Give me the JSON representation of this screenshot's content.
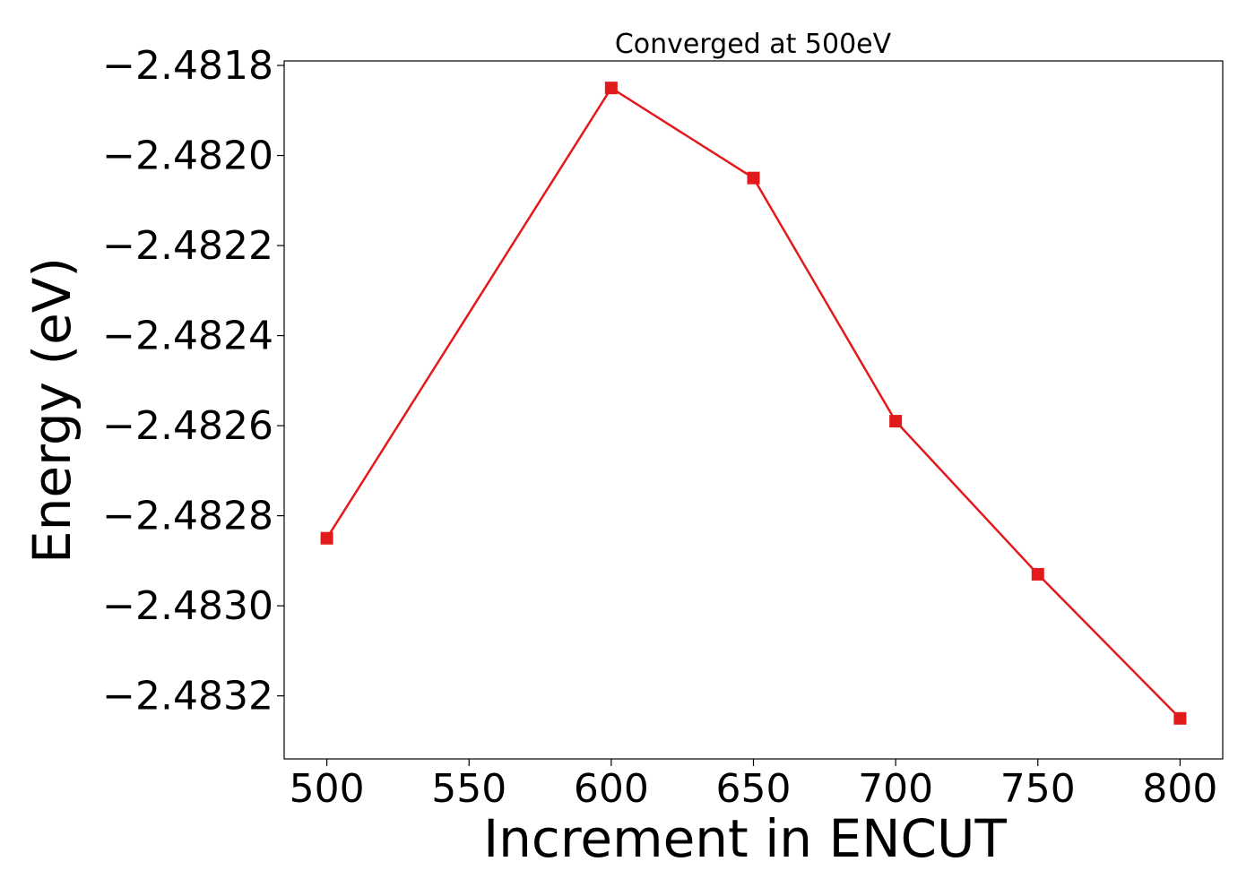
{
  "chart_data": {
    "type": "line",
    "title": "Converged at 500eV",
    "xlabel": "Increment in ENCUT",
    "ylabel": "Energy (eV)",
    "x": [
      500,
      600,
      650,
      700,
      750,
      800
    ],
    "series": [
      {
        "values": [
          -2.48285,
          -2.48185,
          -2.48205,
          -2.48259,
          -2.48293,
          -2.48325
        ],
        "color": "#e31a1c",
        "marker": "square"
      }
    ],
    "xticks": [
      500,
      550,
      600,
      650,
      700,
      750,
      800
    ],
    "xtick_labels": [
      "500",
      "550",
      "600",
      "650",
      "700",
      "750",
      "800"
    ],
    "yticks": [
      -2.4818,
      -2.482,
      -2.4822,
      -2.4824,
      -2.4826,
      -2.4828,
      -2.483,
      -2.4832
    ],
    "ytick_labels": [
      "−2.4818",
      "−2.4820",
      "−2.4822",
      "−2.4824",
      "−2.4826",
      "−2.4828",
      "−2.4830",
      "−2.4832"
    ],
    "xlim": [
      485,
      815
    ],
    "ylim": [
      -2.48334,
      -2.48179
    ],
    "grid": false,
    "legend": "none"
  }
}
